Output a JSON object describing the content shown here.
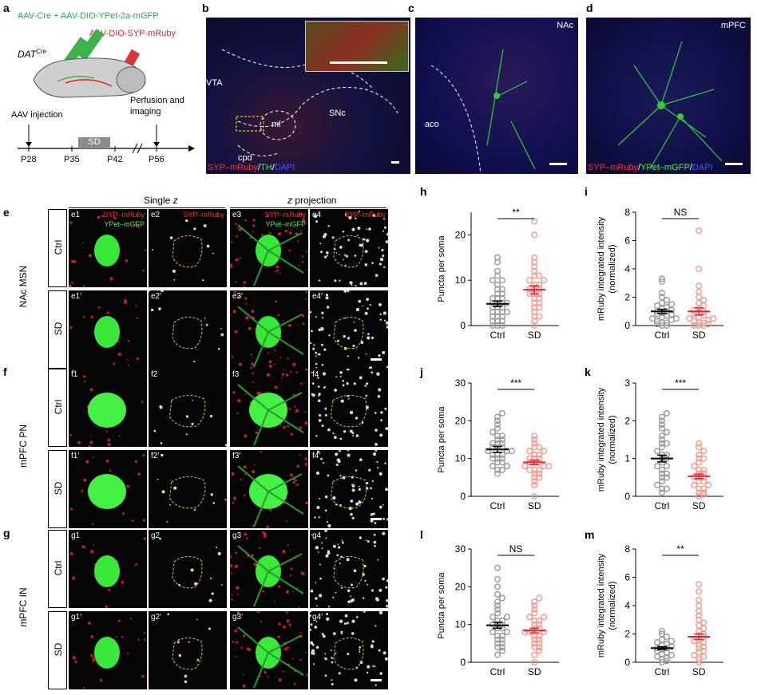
{
  "panels": {
    "a": {
      "label": "a",
      "inj_green": "AAV-Cre + AAV-DIO-YPet-2a-mGFP",
      "inj_red": "AAV-DIO-SYP-mRuby",
      "mouse_line_main": "DAT",
      "mouse_line_sup": "Cre",
      "aav_injection": "AAV injection",
      "perfusion_line1": "Perfusion and",
      "perfusion_line2": "imaging",
      "sd_box": "SD",
      "timepoints": [
        "P28",
        "P35",
        "P42",
        "P56"
      ]
    },
    "b": {
      "label": "b",
      "regions": [
        "VTA",
        "ml",
        "SNc",
        "cpd"
      ],
      "legend_red": "SYP–mRuby",
      "legend_sep1": "/",
      "legend_green": "TH",
      "legend_sep2": "/",
      "legend_blue": "DAPI"
    },
    "c": {
      "label": "c",
      "region": "NAc",
      "structure": "aco"
    },
    "d": {
      "label": "d",
      "region": "mPFC",
      "legend_red": "SYP–mRuby",
      "legend_sep1": "/",
      "legend_green": "YPet–mGFP",
      "legend_sep2": "/",
      "legend_blue": "DAPI"
    },
    "grid_headers": {
      "single": "Single ",
      "single_z": "z",
      "proj_z": "z",
      "proj": " projection"
    },
    "e": {
      "label": "e",
      "group": "NAc MSN",
      "rows": [
        "Ctrl",
        "SD"
      ],
      "tiles": [
        [
          "e1",
          "e2",
          "e3",
          "e4"
        ],
        [
          "e1′",
          "e2′",
          "e3′",
          "e4′"
        ]
      ]
    },
    "f": {
      "label": "f",
      "group": "mPFC PN",
      "rows": [
        "Ctrl",
        "SD"
      ],
      "tiles": [
        [
          "f1",
          "f2",
          "f3",
          "f4"
        ],
        [
          "f1′",
          "f2′",
          "f3′",
          "f4′"
        ]
      ]
    },
    "g": {
      "label": "g",
      "group": "mPFC IN",
      "rows": [
        "Ctrl",
        "SD"
      ],
      "tiles": [
        [
          "g1",
          "g2",
          "g3",
          "g4"
        ],
        [
          "g1′",
          "g2′",
          "g3′",
          "g4′"
        ]
      ]
    },
    "tile_channel_labels": {
      "merge_red": "SYP–mRuby",
      "merge_green": "YPet–mGFP",
      "gray_red": "SYP–mRuby"
    }
  },
  "chart_data": [
    {
      "panel": "h",
      "type": "scatter",
      "ylabel": "Puncta per soma",
      "categories": [
        "Ctrl",
        "SD"
      ],
      "ylim": [
        0,
        25
      ],
      "yticks": [
        0,
        10,
        20
      ],
      "significance": "**",
      "means": [
        4.8,
        7.9
      ],
      "sems": [
        0.6,
        0.9
      ],
      "series": [
        {
          "name": "Ctrl",
          "values": [
            0,
            0,
            0,
            1,
            1,
            1,
            2,
            2,
            2,
            3,
            3,
            3,
            3,
            4,
            4,
            4,
            5,
            5,
            5,
            5,
            6,
            6,
            6,
            7,
            7,
            8,
            8,
            9,
            10,
            10,
            11,
            12,
            14,
            15
          ]
        },
        {
          "name": "SD",
          "values": [
            0,
            1,
            2,
            2,
            3,
            4,
            4,
            5,
            5,
            6,
            6,
            7,
            7,
            7,
            8,
            8,
            8,
            9,
            9,
            10,
            10,
            11,
            11,
            12,
            13,
            14,
            15,
            20,
            23
          ]
        }
      ]
    },
    {
      "panel": "i",
      "type": "scatter",
      "ylabel": "mRuby integrated intensity\n(normalized)",
      "categories": [
        "Ctrl",
        "SD"
      ],
      "ylim": [
        0,
        8
      ],
      "yticks": [
        0,
        2,
        4,
        6,
        8
      ],
      "significance": "NS",
      "means": [
        1.0,
        1.0
      ],
      "sems": [
        0.15,
        0.25
      ],
      "series": [
        {
          "name": "Ctrl",
          "values": [
            0,
            0,
            0.1,
            0.2,
            0.2,
            0.3,
            0.4,
            0.5,
            0.5,
            0.6,
            0.7,
            0.8,
            0.8,
            0.9,
            1.0,
            1.0,
            1.1,
            1.2,
            1.3,
            1.4,
            1.5,
            1.6,
            1.8,
            2.0,
            2.3,
            3.1,
            3.3
          ]
        },
        {
          "name": "SD",
          "values": [
            0,
            0,
            0,
            0.1,
            0.2,
            0.2,
            0.3,
            0.4,
            0.5,
            0.5,
            0.6,
            0.7,
            0.8,
            0.9,
            1.0,
            1.1,
            1.2,
            1.4,
            1.6,
            1.8,
            2.0,
            2.4,
            2.8,
            4.0,
            6.7
          ]
        }
      ]
    },
    {
      "panel": "j",
      "type": "scatter",
      "ylabel": "Puncta per soma",
      "categories": [
        "Ctrl",
        "SD"
      ],
      "ylim": [
        0,
        30
      ],
      "yticks": [
        0,
        10,
        20,
        30
      ],
      "significance": "***",
      "means": [
        12.4,
        9.0
      ],
      "sems": [
        0.8,
        0.6
      ],
      "series": [
        {
          "name": "Ctrl",
          "values": [
            6,
            7,
            7,
            8,
            8,
            9,
            9,
            10,
            10,
            10,
            11,
            11,
            11,
            12,
            12,
            12,
            13,
            13,
            13,
            14,
            14,
            14,
            15,
            15,
            16,
            16,
            17,
            18,
            19,
            20,
            21,
            22
          ]
        },
        {
          "name": "SD",
          "values": [
            0,
            3,
            4,
            5,
            5,
            6,
            6,
            7,
            7,
            7,
            8,
            8,
            8,
            9,
            9,
            9,
            10,
            10,
            10,
            11,
            11,
            12,
            12,
            13,
            13,
            14,
            15,
            16
          ]
        }
      ]
    },
    {
      "panel": "k",
      "type": "scatter",
      "ylabel": "mRuby integrated intensity\n(normalized)",
      "categories": [
        "Ctrl",
        "SD"
      ],
      "ylim": [
        0,
        3
      ],
      "yticks": [
        0,
        1,
        2,
        3
      ],
      "significance": "***",
      "means": [
        1.0,
        0.53
      ],
      "sems": [
        0.09,
        0.06
      ],
      "series": [
        {
          "name": "Ctrl",
          "values": [
            0.1,
            0.2,
            0.2,
            0.3,
            0.4,
            0.5,
            0.5,
            0.6,
            0.6,
            0.7,
            0.8,
            0.8,
            0.9,
            1.0,
            1.0,
            1.1,
            1.1,
            1.2,
            1.3,
            1.4,
            1.4,
            1.5,
            1.6,
            1.7,
            1.8,
            1.9,
            2.0,
            2.1,
            2.2
          ]
        },
        {
          "name": "SD",
          "values": [
            0,
            0.05,
            0.1,
            0.1,
            0.2,
            0.2,
            0.3,
            0.3,
            0.4,
            0.4,
            0.5,
            0.5,
            0.5,
            0.6,
            0.6,
            0.7,
            0.7,
            0.8,
            0.9,
            1.0,
            1.0,
            1.1,
            1.2,
            1.3,
            1.4
          ]
        }
      ]
    },
    {
      "panel": "l",
      "type": "scatter",
      "ylabel": "Puncta per soma",
      "categories": [
        "Ctrl",
        "SD"
      ],
      "ylim": [
        0,
        30
      ],
      "yticks": [
        0,
        10,
        20,
        30
      ],
      "significance": "NS",
      "means": [
        9.8,
        8.4
      ],
      "sems": [
        0.8,
        0.6
      ],
      "series": [
        {
          "name": "Ctrl",
          "values": [
            2,
            3,
            4,
            4,
            5,
            5,
            6,
            6,
            7,
            7,
            8,
            8,
            9,
            9,
            10,
            10,
            10,
            11,
            11,
            12,
            12,
            13,
            14,
            15,
            16,
            17,
            18,
            20,
            22,
            25
          ]
        },
        {
          "name": "SD",
          "values": [
            0,
            2,
            3,
            4,
            4,
            5,
            5,
            6,
            6,
            7,
            7,
            8,
            8,
            8,
            9,
            9,
            10,
            10,
            11,
            11,
            12,
            12,
            13,
            14,
            15,
            16,
            17
          ]
        }
      ]
    },
    {
      "panel": "m",
      "type": "scatter",
      "ylabel": "mRuby integrated intensity\n(normalized)",
      "categories": [
        "Ctrl",
        "SD"
      ],
      "ylim": [
        0,
        8
      ],
      "yticks": [
        0,
        2,
        4,
        6,
        8
      ],
      "significance": "**",
      "means": [
        1.0,
        1.8
      ],
      "sems": [
        0.1,
        0.2
      ],
      "series": [
        {
          "name": "Ctrl",
          "values": [
            0,
            0.1,
            0.2,
            0.3,
            0.4,
            0.5,
            0.6,
            0.7,
            0.8,
            0.9,
            1.0,
            1.0,
            1.1,
            1.2,
            1.3,
            1.4,
            1.5,
            1.6,
            1.8,
            2.0,
            2.2
          ]
        },
        {
          "name": "SD",
          "values": [
            0,
            0.2,
            0.4,
            0.5,
            0.7,
            0.8,
            1.0,
            1.1,
            1.2,
            1.4,
            1.5,
            1.6,
            1.8,
            1.9,
            2.0,
            2.2,
            2.4,
            2.6,
            2.8,
            3.0,
            3.3,
            3.6,
            4.0,
            4.4,
            5.0,
            5.5
          ]
        }
      ]
    }
  ],
  "colors": {
    "ctrl": "#9a9a9a",
    "sd": "#f29a8e",
    "sd_mean": "#e8232f",
    "ctrl_mean": "#000000"
  }
}
